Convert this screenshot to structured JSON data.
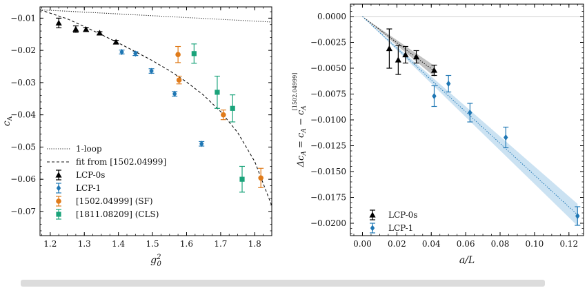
{
  "chart_data": [
    {
      "type": "scatter",
      "xlabel": "g_0^2",
      "ylabel": "c_A",
      "xlim": [
        1.17,
        1.85
      ],
      "ylim": [
        -0.0775,
        -0.0065
      ],
      "xticks": [
        1.2,
        1.3,
        1.4,
        1.5,
        1.6,
        1.7,
        1.8
      ],
      "xtick_labels": [
        "1.2",
        "1.3",
        "1.4",
        "1.5",
        "1.6",
        "1.7",
        "1.8"
      ],
      "yticks": [
        -0.01,
        -0.02,
        -0.03,
        -0.04,
        -0.05,
        -0.06,
        -0.07
      ],
      "ytick_labels": [
        "−0.01",
        "−0.02",
        "−0.03",
        "−0.04",
        "−0.05",
        "−0.06",
        "−0.07"
      ],
      "grid": false,
      "legend_position": "bottom-left",
      "lines": [
        {
          "name": "1-loop",
          "style": "dotted",
          "color": "#222222",
          "x": [
            1.17,
            1.85
          ],
          "y": [
            -0.0074,
            -0.0112
          ]
        },
        {
          "name": "fit from [1502.04999]",
          "style": "dashed",
          "color": "#111111",
          "x": [
            1.17,
            1.25,
            1.3,
            1.35,
            1.4,
            1.45,
            1.5,
            1.55,
            1.6,
            1.65,
            1.7,
            1.75,
            1.8,
            1.85
          ],
          "y": [
            -0.0074,
            -0.0102,
            -0.0126,
            -0.0151,
            -0.0177,
            -0.0204,
            -0.0232,
            -0.0263,
            -0.0298,
            -0.0339,
            -0.039,
            -0.0455,
            -0.0545,
            -0.0682
          ]
        }
      ],
      "series": [
        {
          "name": "LCP-0s",
          "marker": "triangle",
          "color": "#000000",
          "points": [
            {
              "x": 1.225,
              "y": -0.0115,
              "err": 0.0015
            },
            {
              "x": 1.275,
              "y": -0.0134,
              "err": 0.001
            },
            {
              "x": 1.305,
              "y": -0.0135,
              "err": 0.0006
            },
            {
              "x": 1.345,
              "y": -0.0146,
              "err": 0.0004
            },
            {
              "x": 1.393,
              "y": -0.0174,
              "err": 0.0005
            }
          ]
        },
        {
          "name": "LCP-1",
          "marker": "diamond",
          "color": "#1f77b4",
          "points": [
            {
              "x": 1.41,
              "y": -0.0205,
              "err": 0.0006
            },
            {
              "x": 1.45,
              "y": -0.021,
              "err": 0.0006
            },
            {
              "x": 1.497,
              "y": -0.0264,
              "err": 0.0007
            },
            {
              "x": 1.565,
              "y": -0.0335,
              "err": 0.0007
            },
            {
              "x": 1.644,
              "y": -0.049,
              "err": 0.0007
            }
          ]
        },
        {
          "name": "[1502.04999] (SF)",
          "marker": "circle",
          "color": "#e07b1a",
          "points": [
            {
              "x": 1.575,
              "y": -0.0213,
              "err": 0.0025
            },
            {
              "x": 1.578,
              "y": -0.0292,
              "err": 0.0012
            },
            {
              "x": 1.708,
              "y": -0.04,
              "err": 0.0015
            },
            {
              "x": 1.818,
              "y": -0.0596,
              "err": 0.003
            }
          ]
        },
        {
          "name": "[1811.08209] (CLS)",
          "marker": "square",
          "color": "#1aa37a",
          "points": [
            {
              "x": 1.622,
              "y": -0.021,
              "err": 0.003
            },
            {
              "x": 1.69,
              "y": -0.033,
              "err": 0.005
            },
            {
              "x": 1.735,
              "y": -0.038,
              "err": 0.0042
            },
            {
              "x": 1.763,
              "y": -0.06,
              "err": 0.004
            }
          ]
        }
      ]
    },
    {
      "type": "scatter",
      "xlabel": "a/L",
      "ylabel": "Δc_A = c_A − c_A^{[1502.04999]}",
      "xlim": [
        -0.007,
        0.1285
      ],
      "ylim": [
        -0.0212,
        0.0012
      ],
      "xticks": [
        0.0,
        0.02,
        0.04,
        0.06,
        0.08,
        0.1,
        0.12
      ],
      "xtick_labels": [
        "0.00",
        "0.02",
        "0.04",
        "0.06",
        "0.08",
        "0.10",
        "0.12"
      ],
      "yticks": [
        0.0,
        -0.0025,
        -0.005,
        -0.0075,
        -0.01,
        -0.0125,
        -0.015,
        -0.0175,
        -0.02
      ],
      "ytick_labels": [
        "0.0000",
        "−0.0025",
        "−0.0050",
        "−0.0075",
        "−0.0100",
        "−0.0125",
        "−0.0150",
        "−0.0175",
        "−0.0200"
      ],
      "grid": false,
      "legend_position": "bottom-left",
      "fits": [
        {
          "series": "LCP-0s",
          "color": "#111111",
          "band_color": "#9a9a9a",
          "slope": -0.1265,
          "slope_band": [
            -0.114,
            -0.139
          ],
          "x_end": 0.042
        },
        {
          "series": "LCP-1",
          "color": "#1f77b4",
          "band_color": "#a9cfea",
          "slope": -0.1535,
          "slope_band": [
            -0.145,
            -0.162
          ],
          "x_end": 0.125
        }
      ],
      "series": [
        {
          "name": "LCP-0s",
          "marker": "triangle",
          "color": "#000000",
          "points": [
            {
              "x": 0.0156,
              "y": -0.0031,
              "err": 0.0019
            },
            {
              "x": 0.0208,
              "y": -0.0042,
              "err": 0.0014
            },
            {
              "x": 0.025,
              "y": -0.0037,
              "err": 0.0008
            },
            {
              "x": 0.0313,
              "y": -0.0039,
              "err": 0.0006
            },
            {
              "x": 0.0417,
              "y": -0.0052,
              "err": 0.0005
            }
          ]
        },
        {
          "name": "LCP-1",
          "marker": "diamond",
          "color": "#1f77b4",
          "points": [
            {
              "x": 0.0417,
              "y": -0.0077,
              "err": 0.001
            },
            {
              "x": 0.05,
              "y": -0.0065,
              "err": 0.0008
            },
            {
              "x": 0.0625,
              "y": -0.0093,
              "err": 0.0009
            },
            {
              "x": 0.0833,
              "y": -0.0117,
              "err": 0.001
            },
            {
              "x": 0.125,
              "y": -0.0193,
              "err": 0.0009
            }
          ]
        }
      ]
    }
  ]
}
